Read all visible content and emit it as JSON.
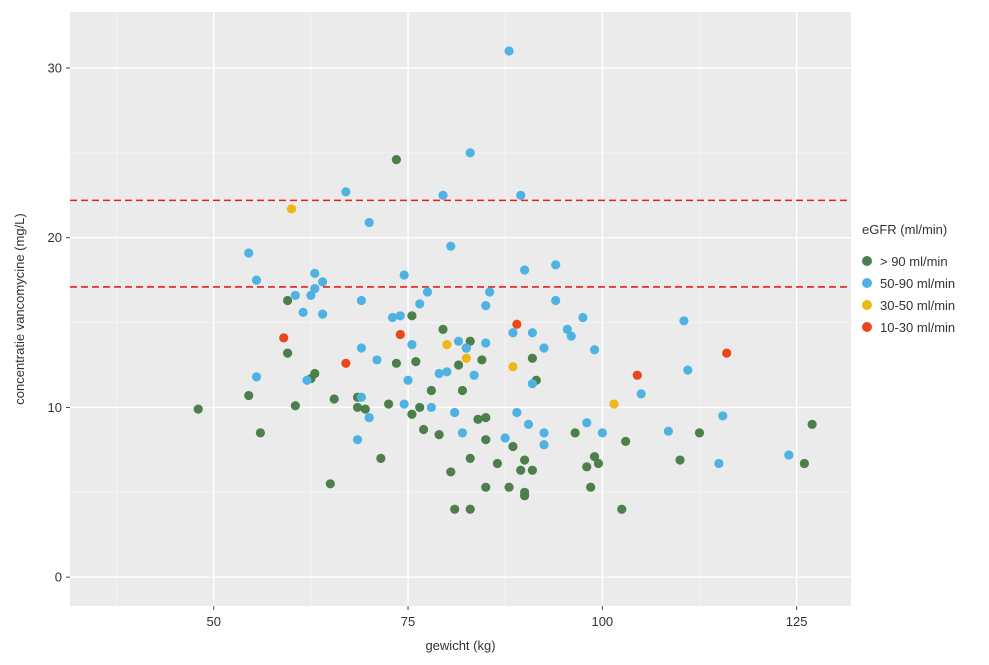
{
  "chart_data": {
    "type": "scatter",
    "title": "",
    "xlabel": "gewicht (kg)",
    "ylabel": "concentratie vancomycine (mg/L)",
    "xlim": [
      31.5,
      132
    ],
    "ylim": [
      -1.7,
      33.3
    ],
    "x_ticks": [
      50,
      75,
      100,
      125
    ],
    "x_tick_labels": [
      "50",
      "75",
      "100",
      "125"
    ],
    "y_ticks": [
      0,
      10,
      20,
      30
    ],
    "y_tick_labels": [
      "0",
      "10",
      "20",
      "30"
    ],
    "grid": true,
    "legend_title": "eGFR (ml/min)",
    "legend_position": "right",
    "reference_lines": [
      {
        "axis": "y",
        "value": 17.1,
        "style": "dashed",
        "color": "#e3211f"
      },
      {
        "axis": "y",
        "value": 22.2,
        "style": "dashed",
        "color": "#e3211f"
      }
    ],
    "series": [
      {
        "name": "> 90 ml/min",
        "color": "#4c7f49",
        "points": [
          [
            48,
            9.9
          ],
          [
            54.5,
            10.7
          ],
          [
            56,
            8.5
          ],
          [
            59.5,
            16.3
          ],
          [
            59.5,
            13.2
          ],
          [
            60.5,
            10.1
          ],
          [
            62.5,
            11.7
          ],
          [
            63,
            12
          ],
          [
            65,
            5.5
          ],
          [
            65.5,
            10.5
          ],
          [
            68.5,
            10.6
          ],
          [
            68.5,
            10
          ],
          [
            69.5,
            9.9
          ],
          [
            71.5,
            7
          ],
          [
            72.5,
            10.2
          ],
          [
            73.5,
            24.6
          ],
          [
            73.5,
            12.6
          ],
          [
            75.5,
            9.6
          ],
          [
            75.5,
            15.4
          ],
          [
            76,
            12.7
          ],
          [
            76.5,
            10
          ],
          [
            77,
            8.7
          ],
          [
            78,
            11
          ],
          [
            79,
            8.4
          ],
          [
            79.5,
            14.6
          ],
          [
            80.5,
            6.2
          ],
          [
            81,
            4
          ],
          [
            81.5,
            12.5
          ],
          [
            82,
            11
          ],
          [
            82.5,
            13.5
          ],
          [
            83,
            7
          ],
          [
            83,
            13.9
          ],
          [
            83,
            4
          ],
          [
            84,
            9.3
          ],
          [
            84.5,
            12.8
          ],
          [
            85,
            5.3
          ],
          [
            85,
            9.4
          ],
          [
            85,
            8.1
          ],
          [
            86.5,
            6.7
          ],
          [
            88,
            5.3
          ],
          [
            88.5,
            7.7
          ],
          [
            89.5,
            6.3
          ],
          [
            90,
            5
          ],
          [
            90,
            4.8
          ],
          [
            90,
            6.9
          ],
          [
            91,
            12.9
          ],
          [
            91,
            6.3
          ],
          [
            91.5,
            11.6
          ],
          [
            96.5,
            8.5
          ],
          [
            98,
            6.5
          ],
          [
            98.5,
            5.3
          ],
          [
            99,
            7.1
          ],
          [
            99.5,
            6.7
          ],
          [
            102.5,
            4
          ],
          [
            103,
            8
          ],
          [
            110,
            6.9
          ],
          [
            112.5,
            8.5
          ],
          [
            126,
            6.7
          ],
          [
            127,
            9
          ]
        ]
      },
      {
        "name": "50-90 ml/min",
        "color": "#4eb3e3",
        "points": [
          [
            54.5,
            19.1
          ],
          [
            55.5,
            11.8
          ],
          [
            55.5,
            17.5
          ],
          [
            60.5,
            16.6
          ],
          [
            61.5,
            15.6
          ],
          [
            62,
            11.6
          ],
          [
            62.5,
            16.6
          ],
          [
            63,
            17.9
          ],
          [
            63,
            17
          ],
          [
            64,
            17.4
          ],
          [
            64,
            15.5
          ],
          [
            67,
            22.7
          ],
          [
            68.5,
            8.1
          ],
          [
            69,
            13.5
          ],
          [
            69,
            16.3
          ],
          [
            69,
            10.6
          ],
          [
            70,
            20.9
          ],
          [
            70,
            9.4
          ],
          [
            71,
            12.8
          ],
          [
            73,
            15.3
          ],
          [
            74,
            15.4
          ],
          [
            74.5,
            17.8
          ],
          [
            74.5,
            10.2
          ],
          [
            75,
            11.6
          ],
          [
            75.5,
            13.7
          ],
          [
            76.5,
            16.1
          ],
          [
            77.5,
            16.8
          ],
          [
            78,
            10
          ],
          [
            79,
            12
          ],
          [
            79.5,
            22.5
          ],
          [
            80,
            12.1
          ],
          [
            80.5,
            19.5
          ],
          [
            81,
            9.7
          ],
          [
            81.5,
            13.9
          ],
          [
            82,
            8.5
          ],
          [
            82.5,
            13.5
          ],
          [
            83,
            25
          ],
          [
            83.5,
            11.9
          ],
          [
            85,
            13.8
          ],
          [
            85,
            16
          ],
          [
            85.5,
            16.8
          ],
          [
            87.5,
            8.2
          ],
          [
            88,
            31
          ],
          [
            88.5,
            14.4
          ],
          [
            89,
            9.7
          ],
          [
            89.5,
            22.5
          ],
          [
            90,
            18.1
          ],
          [
            90.5,
            9
          ],
          [
            91,
            14.4
          ],
          [
            91,
            11.4
          ],
          [
            92.5,
            13.5
          ],
          [
            92.5,
            7.8
          ],
          [
            92.5,
            8.5
          ],
          [
            94,
            16.3
          ],
          [
            94,
            18.4
          ],
          [
            95.5,
            14.6
          ],
          [
            96,
            14.2
          ],
          [
            97.5,
            15.3
          ],
          [
            98,
            9.1
          ],
          [
            99,
            13.4
          ],
          [
            100,
            8.5
          ],
          [
            105,
            10.8
          ],
          [
            108.5,
            8.6
          ],
          [
            110.5,
            15.1
          ],
          [
            111,
            12.2
          ],
          [
            115,
            6.7
          ],
          [
            115.5,
            9.5
          ],
          [
            124,
            7.2
          ]
        ]
      },
      {
        "name": "30-50 ml/min",
        "color": "#edb815",
        "points": [
          [
            60,
            21.7
          ],
          [
            80,
            13.7
          ],
          [
            82.5,
            12.9
          ],
          [
            88.5,
            12.4
          ],
          [
            101.5,
            10.2
          ]
        ]
      },
      {
        "name": "10-30 ml/min",
        "color": "#e9481a",
        "points": [
          [
            59,
            14.1
          ],
          [
            67,
            12.6
          ],
          [
            74,
            14.3
          ],
          [
            89,
            14.9
          ],
          [
            104.5,
            11.9
          ],
          [
            116,
            13.2
          ]
        ]
      }
    ]
  }
}
